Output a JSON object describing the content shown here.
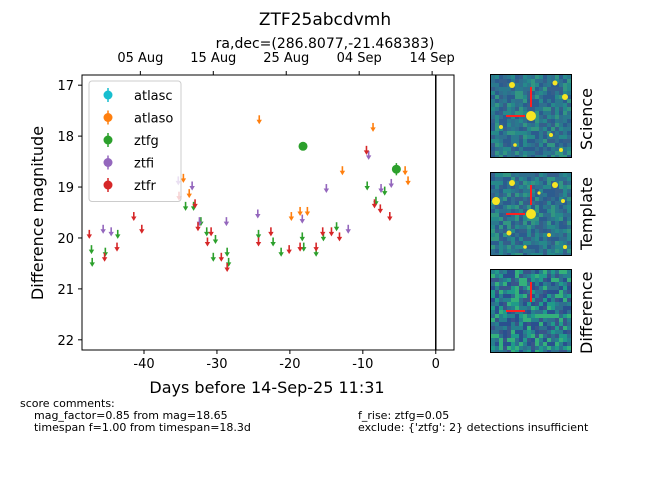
{
  "chart_data": {
    "type": "scatter",
    "title": "ZTF25abcdvmh",
    "subtitle": "ra,dec=(286.8077,-21.468383)",
    "xlabel": "Days before 14-Sep-25 11:31",
    "ylabel": "Difference magnitude",
    "xlim": [
      -48.5,
      2.5
    ],
    "ylim": [
      22.2,
      16.8
    ],
    "y_inverted": true,
    "xticks": [
      -40,
      -30,
      -20,
      -10,
      0
    ],
    "yticks": [
      17,
      18,
      19,
      20,
      21,
      22
    ],
    "top_axis_ticks": [
      {
        "x": -40.5,
        "label": "05 Aug"
      },
      {
        "x": -30.5,
        "label": "15 Aug"
      },
      {
        "x": -20.5,
        "label": "25 Aug"
      },
      {
        "x": -10.5,
        "label": "04 Sep"
      },
      {
        "x": -0.5,
        "label": "14 Sep"
      }
    ],
    "vline_x": 0,
    "legend_position": "top-left",
    "series": [
      {
        "name": "atlasc",
        "color": "#17becf",
        "detections": [],
        "upper_limits": []
      },
      {
        "name": "atlaso",
        "color": "#ff7f0e",
        "detections": [],
        "upper_limits": [
          [
            -34.6,
            18.8
          ],
          [
            -33.8,
            19.1
          ],
          [
            -24.2,
            17.65
          ],
          [
            -19.8,
            19.55
          ],
          [
            -18.6,
            19.45
          ],
          [
            -17.6,
            19.45
          ],
          [
            -12.8,
            18.65
          ],
          [
            -8.6,
            17.8
          ],
          [
            -4.2,
            18.65
          ],
          [
            -3.8,
            18.85
          ]
        ]
      },
      {
        "name": "ztfg",
        "color": "#2ca02c",
        "detections": [
          [
            -18.2,
            18.2,
            0.08
          ],
          [
            -5.4,
            18.65,
            0.12
          ]
        ],
        "upper_limits": [
          [
            -47.2,
            20.2
          ],
          [
            -47.1,
            20.45
          ],
          [
            -45.3,
            20.25
          ],
          [
            -43.6,
            19.9
          ],
          [
            -34.3,
            19.35
          ],
          [
            -33.2,
            19.35
          ],
          [
            -32.2,
            19.65
          ],
          [
            -31.4,
            19.85
          ],
          [
            -30.5,
            20.35
          ],
          [
            -30.2,
            20.0
          ],
          [
            -28.6,
            20.25
          ],
          [
            -28.4,
            20.45
          ],
          [
            -24.3,
            19.9
          ],
          [
            -22.3,
            20.05
          ],
          [
            -21.2,
            20.25
          ],
          [
            -18.3,
            19.95
          ],
          [
            -18.1,
            20.15
          ],
          [
            -16.4,
            20.25
          ],
          [
            -15.4,
            19.95
          ],
          [
            -13.6,
            19.75
          ],
          [
            -9.4,
            18.95
          ],
          [
            -8.2,
            19.25
          ],
          [
            -7.0,
            19.05
          ]
        ]
      },
      {
        "name": "ztfi",
        "color": "#9467bd",
        "detections": [],
        "upper_limits": [
          [
            -45.6,
            19.8
          ],
          [
            -44.5,
            19.85
          ],
          [
            -35.3,
            18.85
          ],
          [
            -33.4,
            18.95
          ],
          [
            -32.4,
            19.65
          ],
          [
            -28.7,
            19.65
          ],
          [
            -24.4,
            19.5
          ],
          [
            -18.3,
            19.6
          ],
          [
            -15.0,
            19.0
          ],
          [
            -12.0,
            19.8
          ],
          [
            -9.2,
            18.35
          ],
          [
            -7.5,
            19.0
          ],
          [
            -6.1,
            18.9
          ]
        ]
      },
      {
        "name": "ztfr",
        "color": "#d62728",
        "detections": [],
        "upper_limits": [
          [
            -47.5,
            19.9
          ],
          [
            -45.4,
            20.35
          ],
          [
            -43.7,
            20.15
          ],
          [
            -41.4,
            19.55
          ],
          [
            -40.3,
            19.8
          ],
          [
            -35.2,
            19.15
          ],
          [
            -33.0,
            19.3
          ],
          [
            -32.6,
            19.75
          ],
          [
            -31.3,
            20.05
          ],
          [
            -30.8,
            19.85
          ],
          [
            -29.4,
            20.35
          ],
          [
            -28.6,
            20.55
          ],
          [
            -24.3,
            20.05
          ],
          [
            -22.6,
            19.85
          ],
          [
            -20.1,
            20.2
          ],
          [
            -18.6,
            20.15
          ],
          [
            -16.4,
            20.15
          ],
          [
            -15.5,
            19.85
          ],
          [
            -14.3,
            19.85
          ],
          [
            -13.2,
            19.95
          ],
          [
            -9.5,
            18.25
          ],
          [
            -8.4,
            19.3
          ],
          [
            -7.6,
            19.4
          ],
          [
            -6.3,
            19.55
          ]
        ]
      }
    ]
  },
  "thumbnails": [
    {
      "label": "Science"
    },
    {
      "label": "Template"
    },
    {
      "label": "Difference"
    }
  ],
  "comments": {
    "header": "score comments:",
    "left_lines": [
      "    mag_factor=0.85 from mag=18.65",
      "    timespan f=1.00 from timespan=18.3d"
    ],
    "right_lines": [
      "f_rise: ztfg=0.05",
      "exclude: {'ztfg': 2} detections insufficient"
    ]
  },
  "colors": {
    "marker_cross": "#ff2020",
    "image_background": "#2f6f8f",
    "star": "#f7e623"
  }
}
